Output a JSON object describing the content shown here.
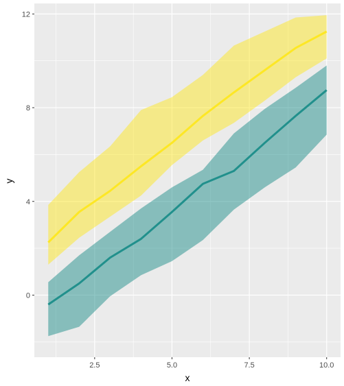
{
  "chart_data": {
    "type": "area",
    "xlabel": "x",
    "ylabel": "y",
    "xlim": [
      0.55,
      10.45
    ],
    "ylim": [
      -2.65,
      12.45
    ],
    "x_ticks": [
      2.5,
      5.0,
      7.5,
      10.0
    ],
    "x_tick_labels": [
      "2.5",
      "5.0",
      "7.5",
      "10.0"
    ],
    "y_ticks": [
      0,
      4,
      8,
      12
    ],
    "y_tick_labels": [
      "0",
      "4",
      "8",
      "12"
    ],
    "grid": true,
    "legend": "none",
    "x": [
      1,
      2,
      3,
      4,
      5,
      6,
      7,
      8,
      9,
      10
    ],
    "series": [
      {
        "color": "#FDE725",
        "line": [
          2.25,
          3.55,
          4.45,
          5.5,
          6.5,
          7.65,
          8.65,
          9.6,
          10.55,
          11.25
        ],
        "lower": [
          1.3,
          2.45,
          3.35,
          4.25,
          5.55,
          6.6,
          7.35,
          8.3,
          9.3,
          10.1
        ],
        "upper": [
          3.85,
          5.25,
          6.35,
          7.9,
          8.45,
          9.4,
          10.65,
          11.25,
          11.85,
          11.95
        ]
      },
      {
        "color": "#21908C",
        "line": [
          -0.4,
          0.5,
          1.6,
          2.4,
          3.55,
          4.75,
          5.3,
          6.5,
          7.65,
          8.75
        ],
        "lower": [
          -1.75,
          -1.35,
          -0.05,
          0.85,
          1.45,
          2.35,
          3.65,
          4.6,
          5.45,
          6.85
        ],
        "upper": [
          0.55,
          1.7,
          2.7,
          3.7,
          4.6,
          5.35,
          6.9,
          7.95,
          8.85,
          9.8
        ]
      }
    ]
  }
}
